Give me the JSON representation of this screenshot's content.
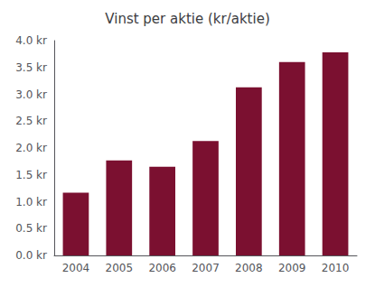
{
  "chart_data": {
    "type": "bar",
    "title": "Vinst per aktie (kr/aktie)",
    "categories": [
      "2004",
      "2005",
      "2006",
      "2007",
      "2008",
      "2009",
      "2010"
    ],
    "values": [
      1.17,
      1.77,
      1.65,
      2.13,
      3.13,
      3.6,
      3.78
    ],
    "color": "#7B1030",
    "ylim": [
      0,
      4.0
    ],
    "yticks": [
      {
        "value": 0.0,
        "label": "0.0 kr"
      },
      {
        "value": 0.5,
        "label": "0.5 kr"
      },
      {
        "value": 1.0,
        "label": "1.0 kr"
      },
      {
        "value": 1.5,
        "label": "1.5 kr"
      },
      {
        "value": 2.0,
        "label": "2.0 kr"
      },
      {
        "value": 2.5,
        "label": "2.5 kr"
      },
      {
        "value": 3.0,
        "label": "3.0 kr"
      },
      {
        "value": 3.5,
        "label": "3.5 kr"
      },
      {
        "value": 4.0,
        "label": "4.0 kr"
      }
    ],
    "grid": false
  }
}
